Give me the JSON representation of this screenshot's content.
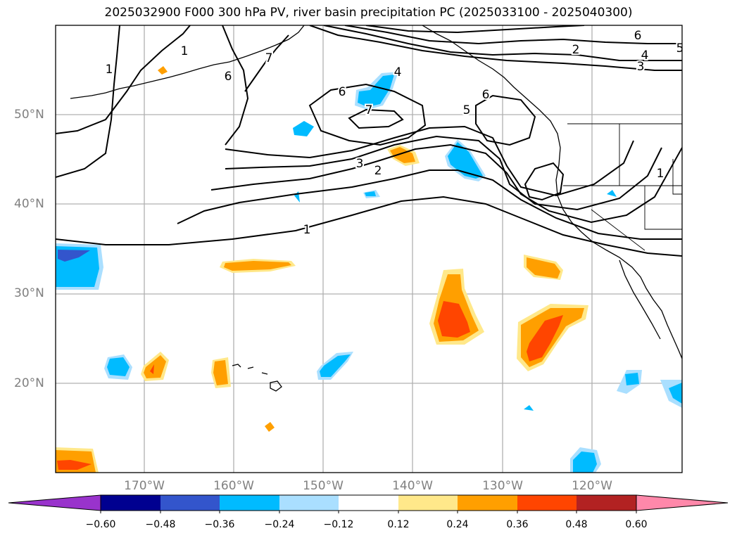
{
  "title": "2025032900 F000 300 hPa PV, river basin precipitation PC (2025033100 - 2025040300)",
  "map": {
    "region": "North Pacific Ocean and North American west coast",
    "lon_range": [
      -180,
      -110
    ],
    "lat_range": [
      10,
      60
    ],
    "lat_labels": [
      "50°N",
      "40°N",
      "30°N",
      "20°N"
    ],
    "lon_labels": [
      "170°W",
      "160°W",
      "150°W",
      "140°W",
      "130°W",
      "120°W"
    ],
    "gridlines": true,
    "pv_contour_labels": [
      "1",
      "1",
      "1",
      "1",
      "2",
      "2",
      "3",
      "3",
      "4",
      "4",
      "5",
      "5",
      "6",
      "6",
      "6",
      "6",
      "7",
      "7"
    ],
    "shaded_field": "river basin precipitation PC",
    "contour_field": "300 hPa PV"
  },
  "colorbar": {
    "ticks": [
      "−0.60",
      "−0.48",
      "−0.36",
      "−0.24",
      "−0.12",
      "0.12",
      "0.24",
      "0.36",
      "0.48",
      "0.60"
    ],
    "colors": [
      "#9933cc",
      "#000090",
      "#3355cc",
      "#00bbff",
      "#aadfff",
      "#ffffff",
      "#ffe88a",
      "#ff9f00",
      "#ff4500",
      "#b22222",
      "#ff88aa"
    ],
    "extend": "both"
  }
}
